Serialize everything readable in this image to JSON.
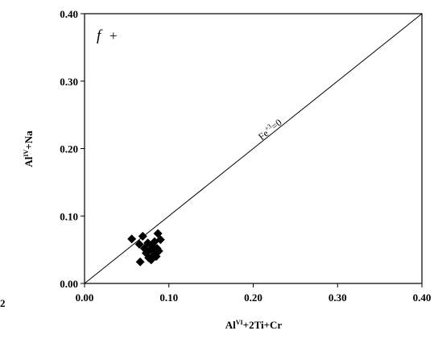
{
  "chart_data": {
    "type": "scatter",
    "panel_label": "f",
    "panel_symbol": "+",
    "xlabel": {
      "base": "Al",
      "sup": "VI",
      "rest": "+2Ti+Cr"
    },
    "ylabel": {
      "base": "Al",
      "sup": "IV",
      "rest": "+Na"
    },
    "xlim": [
      0,
      0.4
    ],
    "ylim": [
      0,
      0.4
    ],
    "xticks": [
      "0.00",
      "0.10",
      "0.20",
      "0.30",
      "0.40"
    ],
    "yticks": [
      "0.00",
      "0.10",
      "0.20",
      "0.30",
      "0.40"
    ],
    "reference_line": {
      "from": [
        0,
        0
      ],
      "to": [
        0.4,
        0.4
      ],
      "label": {
        "base": "Fe",
        "sup": "+3",
        "rest": "=0"
      }
    },
    "points": [
      {
        "x": 0.056,
        "y": 0.066
      },
      {
        "x": 0.065,
        "y": 0.058
      },
      {
        "x": 0.066,
        "y": 0.032
      },
      {
        "x": 0.069,
        "y": 0.07
      },
      {
        "x": 0.071,
        "y": 0.052
      },
      {
        "x": 0.073,
        "y": 0.045
      },
      {
        "x": 0.075,
        "y": 0.06
      },
      {
        "x": 0.076,
        "y": 0.038
      },
      {
        "x": 0.078,
        "y": 0.05
      },
      {
        "x": 0.079,
        "y": 0.035
      },
      {
        "x": 0.08,
        "y": 0.056
      },
      {
        "x": 0.082,
        "y": 0.042
      },
      {
        "x": 0.083,
        "y": 0.062
      },
      {
        "x": 0.084,
        "y": 0.048
      },
      {
        "x": 0.086,
        "y": 0.052
      },
      {
        "x": 0.087,
        "y": 0.074
      },
      {
        "x": 0.088,
        "y": 0.048
      },
      {
        "x": 0.09,
        "y": 0.065
      },
      {
        "x": 0.085,
        "y": 0.04
      }
    ]
  },
  "margin_fragment": "2"
}
